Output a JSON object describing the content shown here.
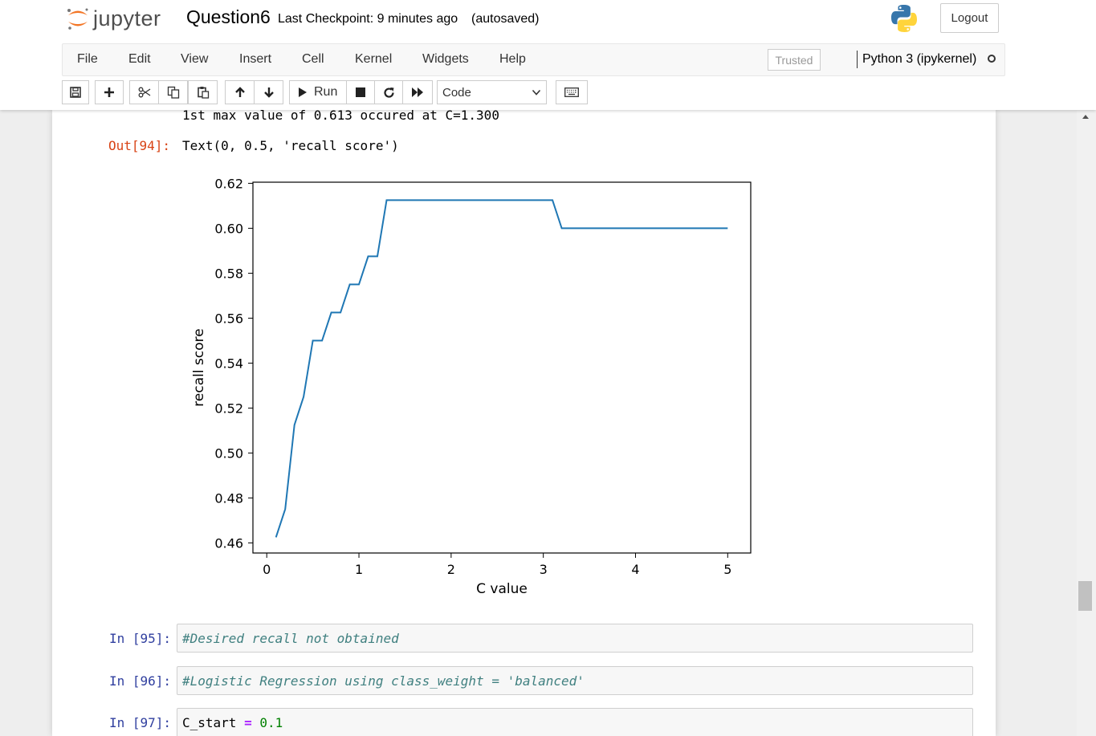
{
  "header": {
    "logo_text": "jupyter",
    "notebook_title": "Question6",
    "checkpoint": "Last Checkpoint: 9 minutes ago",
    "autosave": "(autosaved)",
    "logout_label": "Logout"
  },
  "menubar": {
    "items": [
      "File",
      "Edit",
      "View",
      "Insert",
      "Cell",
      "Kernel",
      "Widgets",
      "Help"
    ],
    "trusted": "Trusted",
    "kernel": "Python 3 (ipykernel)"
  },
  "toolbar": {
    "run_label": "Run",
    "cell_type": "Code"
  },
  "output": {
    "text_line": "1st max value of 0.613 occured at C=1.300",
    "prompt": "Out[94]:",
    "text_repr": "Text(0, 0.5, 'recall score')"
  },
  "chart_data": {
    "type": "line",
    "xlabel": "C value",
    "ylabel": "recall score",
    "xlim": [
      -0.15,
      5.25
    ],
    "ylim": [
      0.4555,
      0.6205
    ],
    "xticks": [
      0,
      1,
      2,
      3,
      4,
      5
    ],
    "xtick_labels": [
      "0",
      "1",
      "2",
      "3",
      "4",
      "5"
    ],
    "yticks": [
      0.46,
      0.48,
      0.5,
      0.52,
      0.54,
      0.56,
      0.58,
      0.6,
      0.62
    ],
    "ytick_labels": [
      "0.46",
      "0.48",
      "0.50",
      "0.52",
      "0.54",
      "0.56",
      "0.58",
      "0.60",
      "0.62"
    ],
    "grid": false,
    "series": [
      {
        "color": "#1f77b4",
        "x": [
          0.1,
          0.2,
          0.3,
          0.4,
          0.5,
          0.6,
          0.7,
          0.8,
          0.9,
          1.0,
          1.1,
          1.2,
          1.3,
          1.4,
          1.5,
          1.6,
          1.7,
          1.8,
          1.9,
          2.0,
          2.1,
          2.2,
          2.3,
          2.4,
          2.5,
          2.6,
          2.7,
          2.8,
          2.9,
          3.0,
          3.1,
          3.2,
          3.3,
          3.4,
          3.5,
          3.6,
          3.7,
          3.8,
          3.9,
          4.0,
          4.1,
          4.2,
          4.3,
          4.4,
          4.5,
          4.6,
          4.7,
          4.8,
          4.9,
          5.0
        ],
        "y": [
          0.4625,
          0.475,
          0.5125,
          0.525,
          0.55,
          0.55,
          0.5625,
          0.5625,
          0.575,
          0.575,
          0.5875,
          0.5875,
          0.6125,
          0.6125,
          0.6125,
          0.6125,
          0.6125,
          0.6125,
          0.6125,
          0.6125,
          0.6125,
          0.6125,
          0.6125,
          0.6125,
          0.6125,
          0.6125,
          0.6125,
          0.6125,
          0.6125,
          0.6125,
          0.6125,
          0.6,
          0.6,
          0.6,
          0.6,
          0.6,
          0.6,
          0.6,
          0.6,
          0.6,
          0.6,
          0.6,
          0.6,
          0.6,
          0.6,
          0.6,
          0.6,
          0.6,
          0.6,
          0.6
        ]
      }
    ]
  },
  "cells": [
    {
      "prompt": "In [95]:",
      "comment": "#Desired recall not obtained"
    },
    {
      "prompt": "In [96]:",
      "comment": "#Logistic Regression using class_weight = 'balanced'"
    },
    {
      "prompt": "In [97]:",
      "var": "C_start",
      "op": "=",
      "value": "0.1"
    }
  ]
}
